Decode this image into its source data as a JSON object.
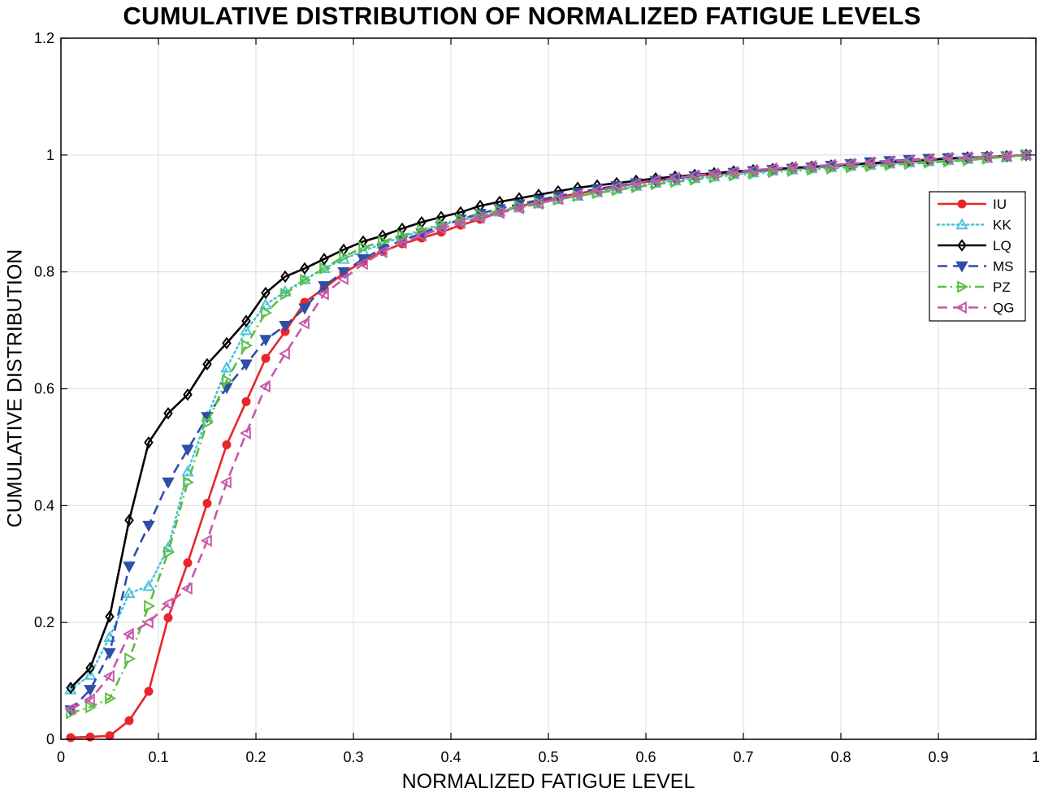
{
  "chart_data": {
    "type": "line",
    "title": "CUMULATIVE DISTRIBUTION OF NORMALIZED FATIGUE LEVELS",
    "xlabel": "NORMALIZED FATIGUE LEVEL",
    "ylabel": "CUMULATIVE DISTRIBUTION",
    "xlim": [
      0,
      1
    ],
    "ylim": [
      0,
      1.2
    ],
    "xticks": [
      0,
      0.1,
      0.2,
      0.3,
      0.4,
      0.5,
      0.6,
      0.7,
      0.8,
      0.9,
      1
    ],
    "yticks": [
      0,
      0.2,
      0.4,
      0.6,
      0.8,
      1,
      1.2
    ],
    "xtick_labels": [
      "0",
      "0.1",
      "0.2",
      "0.3",
      "0.4",
      "0.5",
      "0.6",
      "0.7",
      "0.8",
      "0.9",
      "1"
    ],
    "ytick_labels": [
      "0",
      "0.2",
      "0.4",
      "0.6",
      "0.8",
      "1",
      "1.2"
    ],
    "grid": true,
    "legend_position": "right",
    "x": [
      0.01,
      0.03,
      0.05,
      0.07,
      0.09,
      0.11,
      0.13,
      0.15,
      0.17,
      0.19,
      0.21,
      0.23,
      0.25,
      0.27,
      0.29,
      0.31,
      0.33,
      0.35,
      0.37,
      0.39,
      0.41,
      0.43,
      0.45,
      0.47,
      0.49,
      0.51,
      0.53,
      0.55,
      0.57,
      0.59,
      0.61,
      0.63,
      0.65,
      0.67,
      0.69,
      0.71,
      0.73,
      0.75,
      0.77,
      0.79,
      0.81,
      0.83,
      0.85,
      0.87,
      0.89,
      0.91,
      0.93,
      0.95,
      0.97,
      0.99
    ],
    "series": [
      {
        "name": "IU",
        "color": "#e8262a",
        "dash": "solid",
        "marker": "filled-circle",
        "values": [
          0.003,
          0.004,
          0.006,
          0.032,
          0.082,
          0.208,
          0.302,
          0.404,
          0.504,
          0.578,
          0.652,
          0.698,
          0.748,
          0.772,
          0.798,
          0.818,
          0.835,
          0.848,
          0.858,
          0.868,
          0.88,
          0.89,
          0.902,
          0.912,
          0.92,
          0.928,
          0.934,
          0.94,
          0.946,
          0.952,
          0.956,
          0.96,
          0.964,
          0.967,
          0.97,
          0.972,
          0.975,
          0.977,
          0.979,
          0.981,
          0.983,
          0.985,
          0.987,
          0.989,
          0.991,
          0.993,
          0.995,
          0.997,
          0.998,
          1.0
        ]
      },
      {
        "name": "KK",
        "color": "#4fc3d9",
        "dash": "dotted",
        "marker": "open-triangle-up",
        "values": [
          0.085,
          0.11,
          0.175,
          0.25,
          0.262,
          0.328,
          0.458,
          0.552,
          0.636,
          0.7,
          0.744,
          0.766,
          0.787,
          0.806,
          0.822,
          0.836,
          0.848,
          0.86,
          0.87,
          0.88,
          0.888,
          0.896,
          0.903,
          0.91,
          0.917,
          0.924,
          0.93,
          0.936,
          0.942,
          0.947,
          0.952,
          0.956,
          0.96,
          0.963,
          0.967,
          0.97,
          0.973,
          0.975,
          0.977,
          0.979,
          0.981,
          0.983,
          0.985,
          0.987,
          0.989,
          0.991,
          0.993,
          0.995,
          0.997,
          1.0
        ]
      },
      {
        "name": "LQ",
        "color": "#000000",
        "dash": "solid",
        "marker": "open-diamond",
        "values": [
          0.088,
          0.122,
          0.21,
          0.375,
          0.508,
          0.558,
          0.59,
          0.642,
          0.678,
          0.716,
          0.764,
          0.792,
          0.806,
          0.822,
          0.838,
          0.852,
          0.862,
          0.874,
          0.885,
          0.894,
          0.902,
          0.913,
          0.92,
          0.926,
          0.932,
          0.938,
          0.944,
          0.948,
          0.952,
          0.956,
          0.96,
          0.963,
          0.966,
          0.969,
          0.972,
          0.974,
          0.976,
          0.978,
          0.98,
          0.982,
          0.984,
          0.986,
          0.988,
          0.99,
          0.992,
          0.994,
          0.996,
          0.997,
          0.998,
          1.0
        ]
      },
      {
        "name": "MS",
        "color": "#2f4ea8",
        "dash": "dashed",
        "marker": "filled-triangle-down",
        "values": [
          0.05,
          0.085,
          0.148,
          0.296,
          0.366,
          0.44,
          0.496,
          0.552,
          0.602,
          0.642,
          0.684,
          0.708,
          0.738,
          0.776,
          0.8,
          0.822,
          0.84,
          0.854,
          0.866,
          0.878,
          0.89,
          0.9,
          0.908,
          0.916,
          0.923,
          0.93,
          0.936,
          0.942,
          0.947,
          0.952,
          0.956,
          0.96,
          0.964,
          0.967,
          0.97,
          0.973,
          0.975,
          0.977,
          0.979,
          0.982,
          0.985,
          0.988,
          0.99,
          0.992,
          0.994,
          0.995,
          0.996,
          0.997,
          0.998,
          1.0
        ]
      },
      {
        "name": "PZ",
        "color": "#5cbf3f",
        "dash": "dash-dot",
        "marker": "open-triangle-right",
        "values": [
          0.045,
          0.055,
          0.07,
          0.138,
          0.228,
          0.32,
          0.44,
          0.542,
          0.614,
          0.674,
          0.73,
          0.762,
          0.786,
          0.806,
          0.826,
          0.842,
          0.852,
          0.862,
          0.872,
          0.882,
          0.89,
          0.898,
          0.905,
          0.912,
          0.918,
          0.924,
          0.93,
          0.935,
          0.94,
          0.945,
          0.95,
          0.954,
          0.958,
          0.962,
          0.965,
          0.968,
          0.971,
          0.973,
          0.975,
          0.977,
          0.979,
          0.981,
          0.983,
          0.985,
          0.987,
          0.989,
          0.991,
          0.994,
          0.997,
          1.0
        ]
      },
      {
        "name": "QG",
        "color": "#c658a8",
        "dash": "dashed",
        "marker": "open-triangle-left",
        "values": [
          0.052,
          0.068,
          0.108,
          0.18,
          0.2,
          0.232,
          0.258,
          0.34,
          0.44,
          0.524,
          0.604,
          0.66,
          0.712,
          0.762,
          0.788,
          0.814,
          0.834,
          0.85,
          0.862,
          0.874,
          0.884,
          0.893,
          0.901,
          0.909,
          0.917,
          0.925,
          0.932,
          0.939,
          0.945,
          0.951,
          0.956,
          0.961,
          0.965,
          0.968,
          0.971,
          0.974,
          0.977,
          0.979,
          0.981,
          0.983,
          0.985,
          0.987,
          0.989,
          0.991,
          0.993,
          0.995,
          0.996,
          0.997,
          0.998,
          1.0
        ]
      }
    ]
  }
}
